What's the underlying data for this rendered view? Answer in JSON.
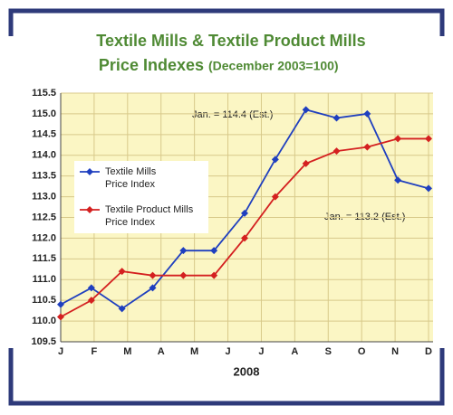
{
  "chart_data": {
    "type": "line",
    "title": "Textile Mills & Textile Product Mills",
    "subtitle": "Price Indexes",
    "subtitle_note": "(December 2003=100)",
    "x_label": "2008",
    "categories": [
      "J",
      "F",
      "M",
      "A",
      "M",
      "J",
      "J",
      "A",
      "S",
      "O",
      "N",
      "D",
      null
    ],
    "series": [
      {
        "name": "Textile Mills Price Index",
        "color": "#1f3fbf",
        "values": [
          110.4,
          110.8,
          110.3,
          110.8,
          111.7,
          111.7,
          112.6,
          113.9,
          115.1,
          114.9,
          115.0,
          113.4,
          113.2
        ]
      },
      {
        "name": "Textile Product Mills Price Index",
        "color": "#d42020",
        "values": [
          110.1,
          110.5,
          111.2,
          111.1,
          111.1,
          111.1,
          112.0,
          113.0,
          113.8,
          114.1,
          114.2,
          114.4,
          114.4
        ]
      }
    ],
    "annotations": [
      "Jan. = 114.4 (Est.)",
      "Jan. = 113.2 (Est.)"
    ],
    "ylim": [
      109.5,
      115.5
    ],
    "yticks": [
      109.5,
      {
        "value": 110,
        "label": "110.0"
      },
      110.5,
      {
        "value": 111,
        "label": "111.0"
      },
      111.5,
      {
        "value": 112,
        "label": "112.0"
      },
      112.5,
      {
        "value": 113,
        "label": "113.0"
      },
      113.5,
      {
        "value": 114,
        "label": "114.0"
      },
      114.5,
      {
        "value": 115,
        "label": "115.0"
      },
      115.5
    ],
    "grid": true,
    "legend": "left"
  }
}
